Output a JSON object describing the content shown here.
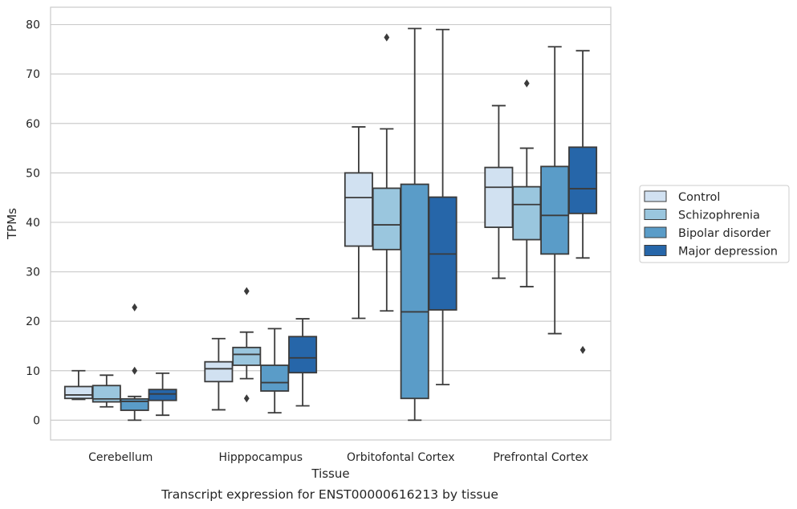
{
  "chart_data": {
    "type": "box",
    "caption": "Transcript expression for ENST00000616213 by tissue",
    "xlabel": "Tissue",
    "ylabel": "TPMs",
    "ylim": [
      -4,
      83.5
    ],
    "yticks": [
      0,
      10,
      20,
      30,
      40,
      50,
      60,
      70,
      80
    ],
    "grid": true,
    "legend_position": "right",
    "categories": [
      "Cerebellum",
      "Hipppocampus",
      "Orbitofontal Cortex",
      "Prefrontal Cortex"
    ],
    "series": [
      {
        "name": "Control",
        "color": "#d1e1f1",
        "boxes": [
          {
            "whislo": 4.2,
            "q1": 4.4,
            "med": 5.1,
            "q3": 6.8,
            "whishi": 10.0,
            "fliers": []
          },
          {
            "whislo": 2.1,
            "q1": 7.8,
            "med": 10.4,
            "q3": 11.8,
            "whishi": 16.5,
            "fliers": []
          },
          {
            "whislo": 20.6,
            "q1": 35.2,
            "med": 45.0,
            "q3": 50.0,
            "whishi": 59.3,
            "fliers": []
          },
          {
            "whislo": 28.7,
            "q1": 39.0,
            "med": 47.1,
            "q3": 51.1,
            "whishi": 63.6,
            "fliers": []
          }
        ]
      },
      {
        "name": "Schizophrenia",
        "color": "#9ac6de",
        "boxes": [
          {
            "whislo": 2.7,
            "q1": 3.7,
            "med": 4.3,
            "q3": 7.0,
            "whishi": 9.1,
            "fliers": []
          },
          {
            "whislo": 8.4,
            "q1": 11.1,
            "med": 13.3,
            "q3": 14.7,
            "whishi": 17.8,
            "fliers": [
              4.4,
              26.1
            ]
          },
          {
            "whislo": 22.1,
            "q1": 34.5,
            "med": 39.5,
            "q3": 46.9,
            "whishi": 58.9,
            "fliers": [
              77.4
            ]
          },
          {
            "whislo": 27.0,
            "q1": 36.5,
            "med": 43.6,
            "q3": 47.2,
            "whishi": 55.0,
            "fliers": [
              68.1
            ]
          }
        ]
      },
      {
        "name": "Bipolar disorder",
        "color": "#5a9cc8",
        "boxes": [
          {
            "whislo": 0.0,
            "q1": 2.0,
            "med": 3.8,
            "q3": 4.3,
            "whishi": 4.8,
            "fliers": [
              10.0,
              22.8
            ]
          },
          {
            "whislo": 1.5,
            "q1": 5.9,
            "med": 7.6,
            "q3": 11.1,
            "whishi": 18.5,
            "fliers": []
          },
          {
            "whislo": 0.0,
            "q1": 4.4,
            "med": 21.9,
            "q3": 47.7,
            "whishi": 79.2,
            "fliers": []
          },
          {
            "whislo": 17.5,
            "q1": 33.6,
            "med": 41.4,
            "q3": 51.3,
            "whishi": 75.5,
            "fliers": []
          }
        ]
      },
      {
        "name": "Major depression",
        "color": "#2666a9",
        "boxes": [
          {
            "whislo": 1.0,
            "q1": 4.0,
            "med": 5.3,
            "q3": 6.2,
            "whishi": 9.5,
            "fliers": []
          },
          {
            "whislo": 2.9,
            "q1": 9.6,
            "med": 12.6,
            "q3": 16.9,
            "whishi": 20.5,
            "fliers": []
          },
          {
            "whislo": 7.2,
            "q1": 22.3,
            "med": 33.6,
            "q3": 45.1,
            "whishi": 79.0,
            "fliers": []
          },
          {
            "whislo": 32.8,
            "q1": 41.8,
            "med": 46.8,
            "q3": 55.2,
            "whishi": 74.7,
            "fliers": [
              14.2
            ]
          }
        ]
      }
    ]
  }
}
